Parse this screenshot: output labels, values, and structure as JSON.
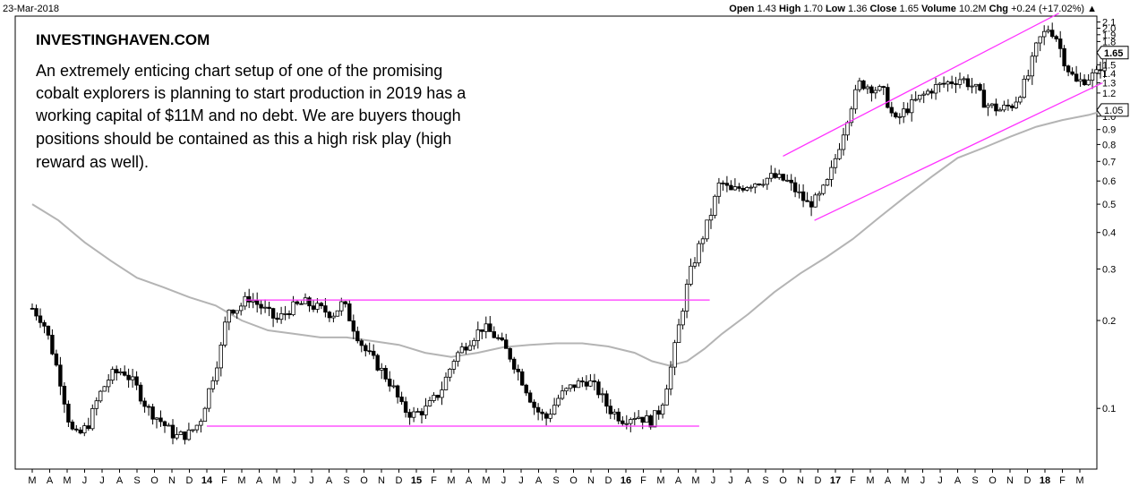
{
  "header": {
    "date": "23-Mar-2018",
    "ohlc": [
      {
        "label": "Open",
        "value": "1.43"
      },
      {
        "label": "High",
        "value": "1.70"
      },
      {
        "label": "Low",
        "value": "1.36"
      },
      {
        "label": "Close",
        "value": "1.65"
      },
      {
        "label": "Volume",
        "value": "10.2M"
      },
      {
        "label": "Chg",
        "value": "+0.24 (+17.02%)"
      }
    ],
    "chg_arrow": "▲"
  },
  "annotation": {
    "source": "INVESTINGHAVEN.COM",
    "lines": [
      "An extremely enticing chart setup of one of the promising",
      "cobalt explorers is planning to start production in 2019 has a",
      "working capital of $11M and no debt. We are buyers though",
      "positions should be contained as this a high risk play (high",
      "reward as well)."
    ]
  },
  "chart_data": {
    "type": "candlestick",
    "y_scale": "log",
    "ylim": [
      0.062,
      2.2
    ],
    "y_ticks": [
      {
        "value": 2.1,
        "label": "2.1"
      },
      {
        "value": 2.0,
        "label": "2.0"
      },
      {
        "value": 1.9,
        "label": "1.9"
      },
      {
        "value": 1.8,
        "label": "1.8"
      },
      {
        "value": 1.5,
        "label": "1.5"
      },
      {
        "value": 1.4,
        "label": "1.4"
      },
      {
        "value": 1.3,
        "label": "1.3"
      },
      {
        "value": 1.2,
        "label": "1.2"
      },
      {
        "value": 1.0,
        "label": "1.0"
      },
      {
        "value": 0.9,
        "label": "0.9"
      },
      {
        "value": 0.8,
        "label": "0.8"
      },
      {
        "value": 0.7,
        "label": "0.7"
      },
      {
        "value": 0.6,
        "label": "0.6"
      },
      {
        "value": 0.5,
        "label": "0.5"
      },
      {
        "value": 0.4,
        "label": "0.4"
      },
      {
        "value": 0.3,
        "label": "0.3"
      },
      {
        "value": 0.2,
        "label": "0.2"
      },
      {
        "value": 0.1,
        "label": "0.1"
      }
    ],
    "price_labels": [
      {
        "value": 1.65,
        "label": "1.65"
      },
      {
        "value": 1.05,
        "label": "1.05"
      }
    ],
    "x_ticks": [
      {
        "t": 0,
        "label": "M"
      },
      {
        "t": 1,
        "label": "A"
      },
      {
        "t": 2,
        "label": "M"
      },
      {
        "t": 3,
        "label": "J"
      },
      {
        "t": 4,
        "label": "J"
      },
      {
        "t": 5,
        "label": "A"
      },
      {
        "t": 6,
        "label": "S"
      },
      {
        "t": 7,
        "label": "O"
      },
      {
        "t": 8,
        "label": "N"
      },
      {
        "t": 9,
        "label": "D"
      },
      {
        "t": 10,
        "label": "14",
        "year": true
      },
      {
        "t": 11,
        "label": "F"
      },
      {
        "t": 12,
        "label": "M"
      },
      {
        "t": 13,
        "label": "A"
      },
      {
        "t": 14,
        "label": "M"
      },
      {
        "t": 15,
        "label": "J"
      },
      {
        "t": 16,
        "label": "J"
      },
      {
        "t": 17,
        "label": "A"
      },
      {
        "t": 18,
        "label": "S"
      },
      {
        "t": 19,
        "label": "O"
      },
      {
        "t": 20,
        "label": "N"
      },
      {
        "t": 21,
        "label": "D"
      },
      {
        "t": 22,
        "label": "15",
        "year": true
      },
      {
        "t": 23,
        "label": "F"
      },
      {
        "t": 24,
        "label": "M"
      },
      {
        "t": 25,
        "label": "A"
      },
      {
        "t": 26,
        "label": "M"
      },
      {
        "t": 27,
        "label": "J"
      },
      {
        "t": 28,
        "label": "J"
      },
      {
        "t": 29,
        "label": "A"
      },
      {
        "t": 30,
        "label": "S"
      },
      {
        "t": 31,
        "label": "O"
      },
      {
        "t": 32,
        "label": "N"
      },
      {
        "t": 33,
        "label": "D"
      },
      {
        "t": 34,
        "label": "16",
        "year": true
      },
      {
        "t": 35,
        "label": "F"
      },
      {
        "t": 36,
        "label": "M"
      },
      {
        "t": 37,
        "label": "A"
      },
      {
        "t": 38,
        "label": "M"
      },
      {
        "t": 39,
        "label": "J"
      },
      {
        "t": 40,
        "label": "J"
      },
      {
        "t": 41,
        "label": "A"
      },
      {
        "t": 42,
        "label": "S"
      },
      {
        "t": 43,
        "label": "O"
      },
      {
        "t": 44,
        "label": "N"
      },
      {
        "t": 45,
        "label": "D"
      },
      {
        "t": 46,
        "label": "17",
        "year": true
      },
      {
        "t": 47,
        "label": "F"
      },
      {
        "t": 48,
        "label": "M"
      },
      {
        "t": 49,
        "label": "A"
      },
      {
        "t": 50,
        "label": "M"
      },
      {
        "t": 51,
        "label": "J"
      },
      {
        "t": 52,
        "label": "J"
      },
      {
        "t": 53,
        "label": "A"
      },
      {
        "t": 54,
        "label": "S"
      },
      {
        "t": 55,
        "label": "O"
      },
      {
        "t": 56,
        "label": "N"
      },
      {
        "t": 57,
        "label": "D"
      },
      {
        "t": 58,
        "label": "18",
        "year": true
      },
      {
        "t": 59,
        "label": "F"
      },
      {
        "t": 60,
        "label": "M"
      }
    ],
    "price_path": [
      [
        0,
        0.22
      ],
      [
        0.6,
        0.2
      ],
      [
        1,
        0.17
      ],
      [
        1.6,
        0.125
      ],
      [
        2.2,
        0.085
      ],
      [
        2.6,
        0.08
      ],
      [
        3.2,
        0.088
      ],
      [
        3.8,
        0.11
      ],
      [
        4.5,
        0.13
      ],
      [
        5.2,
        0.135
      ],
      [
        5.9,
        0.12
      ],
      [
        6.6,
        0.1
      ],
      [
        7.4,
        0.09
      ],
      [
        8.2,
        0.08
      ],
      [
        9,
        0.082
      ],
      [
        9.6,
        0.09
      ],
      [
        10.2,
        0.12
      ],
      [
        10.8,
        0.16
      ],
      [
        11.2,
        0.22
      ],
      [
        11.8,
        0.22
      ],
      [
        12.4,
        0.24
      ],
      [
        13.2,
        0.22
      ],
      [
        14,
        0.2
      ],
      [
        14.8,
        0.22
      ],
      [
        15.6,
        0.23
      ],
      [
        16.4,
        0.22
      ],
      [
        17.2,
        0.21
      ],
      [
        17.8,
        0.23
      ],
      [
        18.4,
        0.19
      ],
      [
        19,
        0.16
      ],
      [
        19.8,
        0.14
      ],
      [
        20.6,
        0.12
      ],
      [
        21.2,
        0.1
      ],
      [
        21.8,
        0.095
      ],
      [
        22.6,
        0.1
      ],
      [
        23.4,
        0.115
      ],
      [
        24.2,
        0.15
      ],
      [
        25,
        0.17
      ],
      [
        25.8,
        0.19
      ],
      [
        26.6,
        0.175
      ],
      [
        27.4,
        0.15
      ],
      [
        28.2,
        0.12
      ],
      [
        28.8,
        0.1
      ],
      [
        29.4,
        0.092
      ],
      [
        30.2,
        0.11
      ],
      [
        31,
        0.12
      ],
      [
        31.8,
        0.125
      ],
      [
        32.4,
        0.115
      ],
      [
        33,
        0.1
      ],
      [
        33.8,
        0.092
      ],
      [
        34.6,
        0.095
      ],
      [
        35.4,
        0.09
      ],
      [
        36,
        0.1
      ],
      [
        36.6,
        0.14
      ],
      [
        37.1,
        0.2
      ],
      [
        37.6,
        0.28
      ],
      [
        38.2,
        0.36
      ],
      [
        38.8,
        0.45
      ],
      [
        39.4,
        0.6
      ],
      [
        40,
        0.55
      ],
      [
        40.8,
        0.58
      ],
      [
        41.6,
        0.6
      ],
      [
        42.4,
        0.62
      ],
      [
        43.2,
        0.6
      ],
      [
        43.8,
        0.55
      ],
      [
        44.4,
        0.5
      ],
      [
        45,
        0.52
      ],
      [
        45.6,
        0.6
      ],
      [
        46.1,
        0.75
      ],
      [
        46.8,
        1.05
      ],
      [
        47.4,
        1.3
      ],
      [
        48.2,
        1.25
      ],
      [
        48.8,
        1.2
      ],
      [
        49.4,
        0.95
      ],
      [
        50,
        1.05
      ],
      [
        50.8,
        1.15
      ],
      [
        51.6,
        1.25
      ],
      [
        52.4,
        1.3
      ],
      [
        53.2,
        1.35
      ],
      [
        54,
        1.25
      ],
      [
        54.6,
        1.1
      ],
      [
        55.4,
        1.05
      ],
      [
        56.2,
        1.1
      ],
      [
        57,
        1.35
      ],
      [
        57.6,
        1.8
      ],
      [
        58.2,
        2.0
      ],
      [
        58.6,
        1.9
      ],
      [
        59.2,
        1.5
      ],
      [
        59.8,
        1.3
      ],
      [
        60.4,
        1.35
      ],
      [
        61,
        1.4
      ],
      [
        61.5,
        1.65
      ]
    ],
    "moving_average": [
      [
        0,
        0.5
      ],
      [
        1.5,
        0.44
      ],
      [
        3,
        0.37
      ],
      [
        4.5,
        0.32
      ],
      [
        6,
        0.28
      ],
      [
        7.5,
        0.26
      ],
      [
        9,
        0.24
      ],
      [
        10.5,
        0.225
      ],
      [
        12,
        0.2
      ],
      [
        13.5,
        0.185
      ],
      [
        15,
        0.18
      ],
      [
        16.5,
        0.175
      ],
      [
        18,
        0.175
      ],
      [
        19.5,
        0.17
      ],
      [
        21,
        0.165
      ],
      [
        22.5,
        0.155
      ],
      [
        24,
        0.15
      ],
      [
        25.5,
        0.155
      ],
      [
        27,
        0.162
      ],
      [
        28.5,
        0.165
      ],
      [
        30,
        0.167
      ],
      [
        31.5,
        0.167
      ],
      [
        33,
        0.163
      ],
      [
        34.5,
        0.155
      ],
      [
        35.5,
        0.145
      ],
      [
        36.5,
        0.14
      ],
      [
        37.5,
        0.145
      ],
      [
        38.5,
        0.16
      ],
      [
        39.5,
        0.18
      ],
      [
        41,
        0.21
      ],
      [
        42.5,
        0.25
      ],
      [
        44,
        0.29
      ],
      [
        45.5,
        0.33
      ],
      [
        47,
        0.38
      ],
      [
        48.5,
        0.45
      ],
      [
        50,
        0.53
      ],
      [
        51.5,
        0.62
      ],
      [
        53,
        0.72
      ],
      [
        54.5,
        0.78
      ],
      [
        56,
        0.85
      ],
      [
        57.5,
        0.92
      ],
      [
        59,
        0.97
      ],
      [
        60.5,
        1.01
      ],
      [
        61.5,
        1.05
      ]
    ],
    "trendlines": [
      {
        "points": [
          [
            12.2,
            0.235
          ],
          [
            38.8,
            0.235
          ]
        ]
      },
      {
        "points": [
          [
            10,
            0.087
          ],
          [
            38.2,
            0.087
          ]
        ]
      },
      {
        "points": [
          [
            43,
            0.73
          ],
          [
            58.8,
            2.25
          ]
        ]
      },
      {
        "points": [
          [
            44.8,
            0.44
          ],
          [
            61.3,
            1.3
          ]
        ]
      }
    ]
  }
}
